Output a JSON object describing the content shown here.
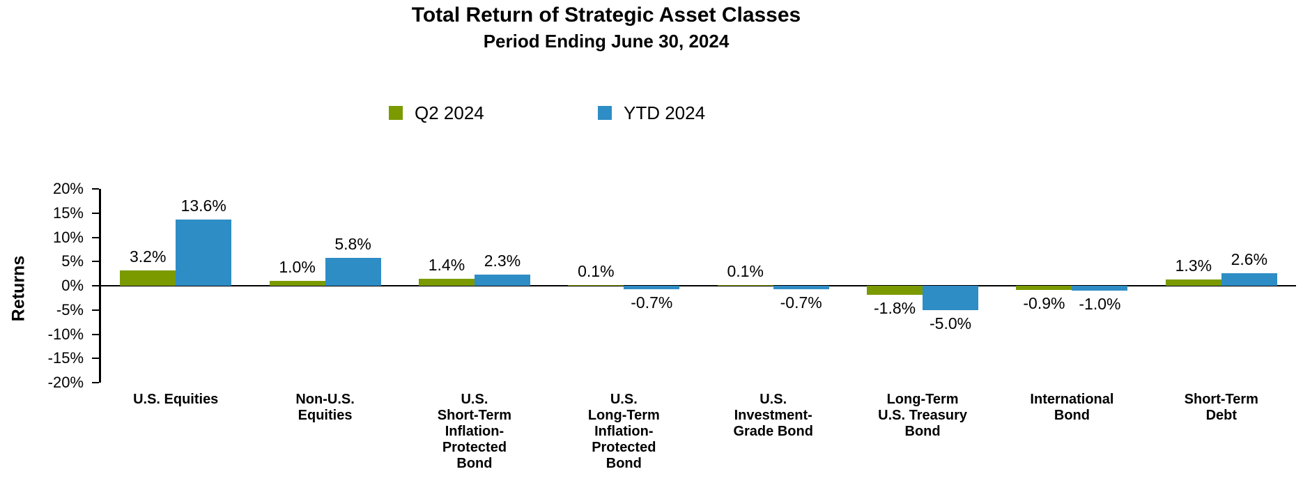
{
  "header": {
    "title": "Total Return of Strategic Asset Classes",
    "subtitle": "Period Ending June 30, 2024"
  },
  "legend": {
    "items": [
      {
        "label": "Q2 2024",
        "color": "#7A9A00"
      },
      {
        "label": "YTD 2024",
        "color": "#2E8DC5"
      }
    ]
  },
  "colors": {
    "q2_green": "#7A9A00",
    "ytd_blue": "#2E8DC5",
    "axis_black": "#000000",
    "background": "#FFFFFF"
  },
  "chart_data": {
    "type": "bar",
    "title": "Total Return of Strategic Asset Classes",
    "subtitle": "Period Ending June 30, 2024",
    "xlabel": "",
    "ylabel": "Returns",
    "ylim": [
      -20,
      20
    ],
    "ytick_step": 5,
    "ytick_labels": [
      "20%",
      "15%",
      "10%",
      "5%",
      "0%",
      "-5%",
      "-10%",
      "-15%",
      "-20%"
    ],
    "grid": false,
    "legend_position": "top",
    "categories": [
      "U.S. Equities",
      "Non-U.S.\nEquities",
      "U.S.\nShort-Term\nInflation-\nProtected\nBond",
      "U.S.\nLong-Term\nInflation-\nProtected\nBond",
      "U.S.\nInvestment-\nGrade Bond",
      "Long-Term\nU.S. Treasury\nBond",
      "International\nBond",
      "Short-Term\nDebt"
    ],
    "series": [
      {
        "name": "Q2 2024",
        "color": "#7A9A00",
        "values": [
          3.2,
          1.0,
          1.4,
          0.1,
          0.1,
          -1.8,
          -0.9,
          1.3
        ],
        "labels": [
          "3.2%",
          "1.0%",
          "1.4%",
          "0.1%",
          "0.1%",
          "-1.8%",
          "-0.9%",
          "1.3%"
        ]
      },
      {
        "name": "YTD 2024",
        "color": "#2E8DC5",
        "values": [
          13.6,
          5.8,
          2.3,
          -0.7,
          -0.7,
          -5.0,
          -1.0,
          2.6
        ],
        "labels": [
          "13.6%",
          "5.8%",
          "2.3%",
          "-0.7%",
          "-0.7%",
          "-5.0%",
          "-1.0%",
          "2.6%"
        ]
      }
    ]
  }
}
